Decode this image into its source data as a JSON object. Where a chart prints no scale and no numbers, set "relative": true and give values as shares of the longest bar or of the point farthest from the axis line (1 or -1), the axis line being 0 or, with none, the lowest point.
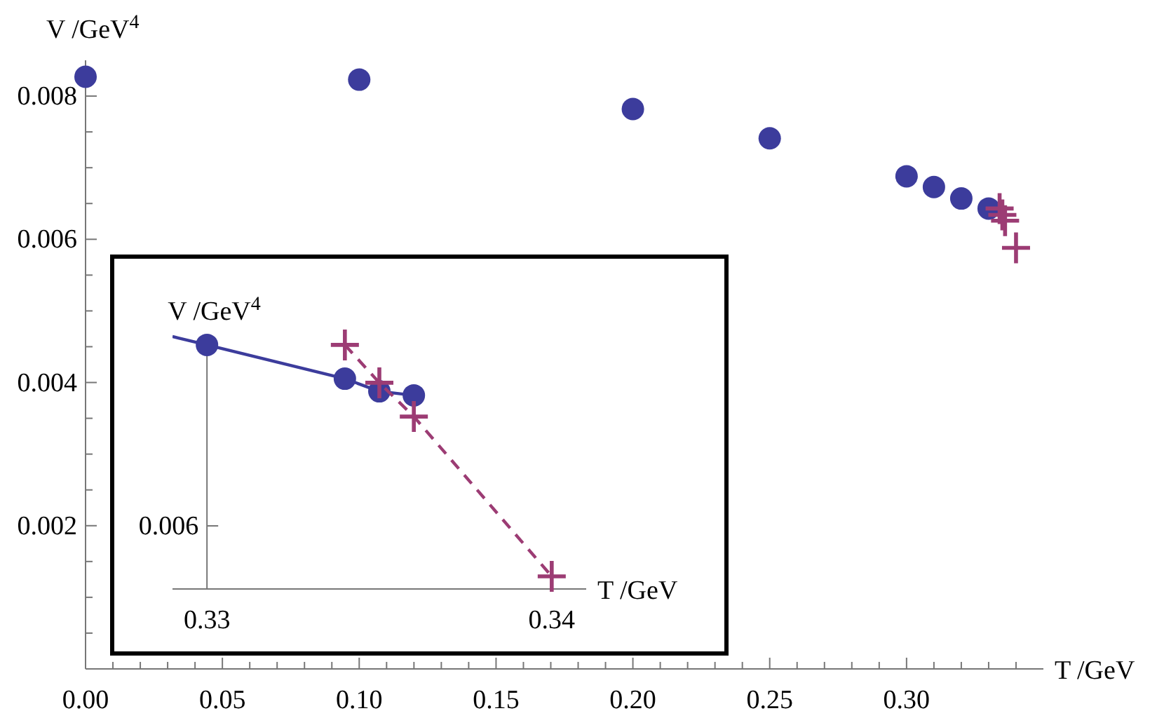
{
  "chart_data": [
    {
      "type": "scatter",
      "xlabel": "T /GeV",
      "ylabel": "V /GeV$^{4}$",
      "xlim": [
        0,
        0.35
      ],
      "ylim": [
        0,
        0.0085
      ],
      "xticks": [
        {
          "value": 0,
          "label": "0.00"
        },
        {
          "value": 0.01,
          "label": null
        },
        {
          "value": 0.02,
          "label": null
        },
        {
          "value": 0.03,
          "label": null
        },
        {
          "value": 0.04,
          "label": null
        },
        {
          "value": 0.05,
          "label": "0.05"
        },
        {
          "value": 0.06,
          "label": null
        },
        {
          "value": 0.07,
          "label": null
        },
        {
          "value": 0.08,
          "label": null
        },
        {
          "value": 0.09,
          "label": null
        },
        {
          "value": 0.1,
          "label": "0.10"
        },
        {
          "value": 0.11,
          "label": null
        },
        {
          "value": 0.12,
          "label": null
        },
        {
          "value": 0.13,
          "label": null
        },
        {
          "value": 0.14,
          "label": null
        },
        {
          "value": 0.15,
          "label": "0.15"
        },
        {
          "value": 0.16,
          "label": null
        },
        {
          "value": 0.17,
          "label": null
        },
        {
          "value": 0.18,
          "label": null
        },
        {
          "value": 0.19,
          "label": null
        },
        {
          "value": 0.2,
          "label": "0.20"
        },
        {
          "value": 0.21,
          "label": null
        },
        {
          "value": 0.22,
          "label": null
        },
        {
          "value": 0.23,
          "label": null
        },
        {
          "value": 0.24,
          "label": null
        },
        {
          "value": 0.25,
          "label": "0.25"
        },
        {
          "value": 0.26,
          "label": null
        },
        {
          "value": 0.27,
          "label": null
        },
        {
          "value": 0.28,
          "label": null
        },
        {
          "value": 0.29,
          "label": null
        },
        {
          "value": 0.3,
          "label": "0.30"
        },
        {
          "value": 0.31,
          "label": null
        },
        {
          "value": 0.32,
          "label": null
        },
        {
          "value": 0.33,
          "label": null
        },
        {
          "value": 0.34,
          "label": null
        }
      ],
      "yticks": [
        {
          "value": 0.0005,
          "label": null
        },
        {
          "value": 0.001,
          "label": null
        },
        {
          "value": 0.0015,
          "label": null
        },
        {
          "value": 0.002,
          "label": "0.002"
        },
        {
          "value": 0.0025,
          "label": null
        },
        {
          "value": 0.003,
          "label": null
        },
        {
          "value": 0.0035,
          "label": null
        },
        {
          "value": 0.004,
          "label": "0.004"
        },
        {
          "value": 0.0045,
          "label": null
        },
        {
          "value": 0.005,
          "label": null
        },
        {
          "value": 0.0055,
          "label": null
        },
        {
          "value": 0.006,
          "label": "0.006"
        },
        {
          "value": 0.0065,
          "label": null
        },
        {
          "value": 0.007,
          "label": null
        },
        {
          "value": 0.0075,
          "label": null
        },
        {
          "value": 0.008,
          "label": "0.008"
        }
      ],
      "series": [
        {
          "marker": "circle",
          "color": "#3c3c9c",
          "x": [
            0,
            0.1,
            0.2,
            0.25,
            0.3,
            0.31,
            0.32,
            0.33
          ],
          "values": [
            0.00827,
            0.00823,
            0.00782,
            0.00741,
            0.00688,
            0.00673,
            0.00657,
            0.00643
          ]
        },
        {
          "marker": "cross",
          "color": "#9c3c74",
          "x": [
            0.334,
            0.335,
            0.336,
            0.34
          ],
          "values": [
            0.00643,
            0.00634,
            0.00626,
            0.00588
          ]
        }
      ]
    },
    {
      "type": "line",
      "relative": true,
      "annotations": [
        "0.006"
      ],
      "xlabel": "T /GeV",
      "ylabel": "V /GeV$^{4}$",
      "xlim": [
        0.329,
        0.341
      ],
      "xticks": [
        0.33,
        0.34
      ],
      "series": [
        {
          "marker": "circle",
          "line_style": "solid",
          "color": "#3c3c9c",
          "x": [
            0.329,
            0.33,
            0.334,
            0.335,
            0.336
          ],
          "values": [
            1,
            0.967,
            0.833,
            0.783,
            0.767
          ]
        },
        {
          "marker": "cross",
          "line_style": "dashed",
          "color": "#9c3c74",
          "x": [
            0.334,
            0.335,
            0.336,
            0.34
          ],
          "values": [
            0.967,
            0.817,
            0.683,
            0.05
          ]
        }
      ]
    }
  ]
}
